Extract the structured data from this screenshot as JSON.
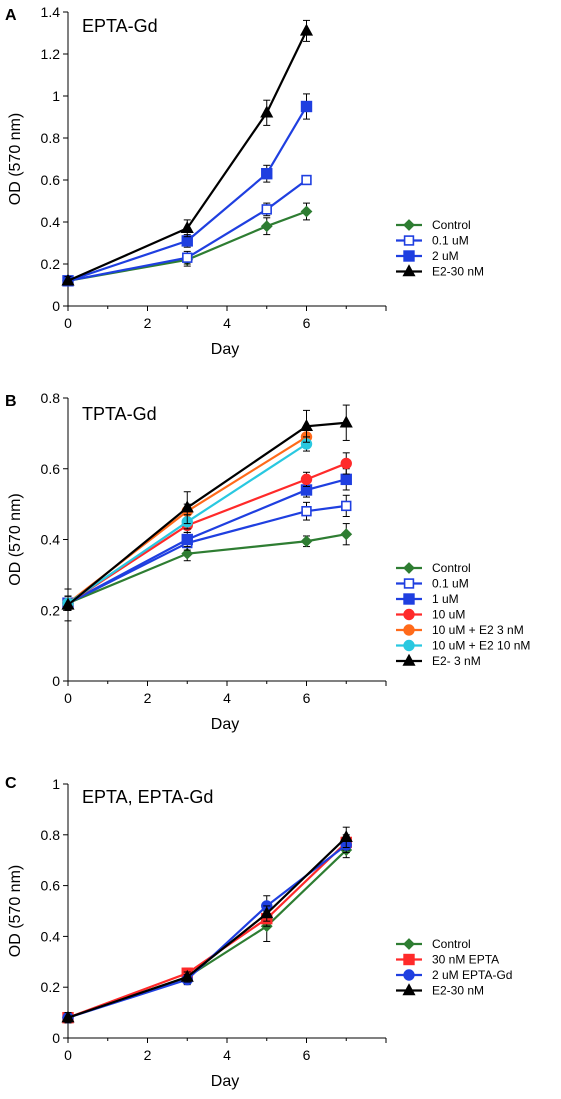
{
  "figure": {
    "colors": {
      "control": "#2e7d32",
      "blue": "#1f3fe0",
      "black": "#000000",
      "red": "#ff2a2a",
      "orange": "#ff6a1a",
      "cyan": "#29c8e0"
    },
    "panels": [
      {
        "letter": "A"
      },
      {
        "letter": "B"
      },
      {
        "letter": "C"
      }
    ]
  },
  "chart_data": [
    {
      "type": "line",
      "title": "EPTA-Gd",
      "xlabel": "Day",
      "ylabel": "OD (570 nm)",
      "xlim": [
        0,
        8
      ],
      "ylim": [
        0,
        1.4
      ],
      "xticks": [
        "0",
        "2",
        "4",
        "6"
      ],
      "yticks": [
        "0",
        "0.2",
        "0.4",
        "0.6",
        "0.8",
        "1",
        "1.2",
        "1.4"
      ],
      "legend_position": "right",
      "grid": false,
      "series": [
        {
          "name": "Control",
          "color": "#2e7d32",
          "marker": "diamond",
          "x": [
            0,
            3,
            5,
            6
          ],
          "y": [
            0.12,
            0.22,
            0.38,
            0.45
          ],
          "err": [
            0.02,
            0.03,
            0.04,
            0.04
          ]
        },
        {
          "name": "0.1 uM",
          "color": "#1f3fe0",
          "marker": "square-open",
          "x": [
            0,
            3,
            5,
            6
          ],
          "y": [
            0.12,
            0.23,
            0.46,
            0.6
          ],
          "err": [
            0.02,
            0.03,
            0.03,
            0.02
          ]
        },
        {
          "name": "2 uM",
          "color": "#1f3fe0",
          "marker": "square",
          "x": [
            0,
            3,
            5,
            6
          ],
          "y": [
            0.12,
            0.31,
            0.63,
            0.95
          ],
          "err": [
            0.02,
            0.03,
            0.04,
            0.06
          ]
        },
        {
          "name": "E2-30 nM",
          "color": "#000000",
          "marker": "triangle",
          "x": [
            0,
            3,
            5,
            6
          ],
          "y": [
            0.12,
            0.37,
            0.92,
            1.31
          ],
          "err": [
            0.02,
            0.04,
            0.06,
            0.05
          ]
        }
      ]
    },
    {
      "type": "line",
      "title": "TPTA-Gd",
      "xlabel": "Day",
      "ylabel": "OD (570 nm)",
      "xlim": [
        0,
        8
      ],
      "ylim": [
        0,
        0.8
      ],
      "xticks": [
        "0",
        "2",
        "4",
        "6"
      ],
      "yticks": [
        "0",
        "0.2",
        "0.4",
        "0.6",
        "0.8"
      ],
      "legend_position": "right",
      "grid": false,
      "series": [
        {
          "name": "Control",
          "color": "#2e7d32",
          "marker": "diamond",
          "x": [
            0,
            3,
            6,
            7
          ],
          "y": [
            0.22,
            0.36,
            0.395,
            0.415
          ],
          "err": [
            0.02,
            0.02,
            0.015,
            0.03
          ]
        },
        {
          "name": "0.1 uM",
          "color": "#1f3fe0",
          "marker": "square-open",
          "x": [
            0,
            3,
            6,
            7
          ],
          "y": [
            0.22,
            0.39,
            0.48,
            0.495
          ],
          "err": [
            0.02,
            0.02,
            0.025,
            0.03
          ]
        },
        {
          "name": "1 uM",
          "color": "#1f3fe0",
          "marker": "square",
          "x": [
            0,
            3,
            6,
            7
          ],
          "y": [
            0.22,
            0.4,
            0.54,
            0.57
          ],
          "err": [
            0.02,
            0.02,
            0.02,
            0.03
          ]
        },
        {
          "name": "10 uM",
          "color": "#ff2a2a",
          "marker": "circle",
          "x": [
            0,
            3,
            6,
            7
          ],
          "y": [
            0.22,
            0.44,
            0.57,
            0.615
          ],
          "err": [
            0.02,
            0.02,
            0.02,
            0.03
          ]
        },
        {
          "name": "10 uM + E2 3 nM",
          "color": "#ff6a1a",
          "marker": "circle",
          "x": [
            0,
            3,
            6
          ],
          "y": [
            0.22,
            0.48,
            0.69
          ],
          "err": [
            0.02,
            0.02,
            0.02
          ]
        },
        {
          "name": "10 uM + E2 10 nM",
          "color": "#29c8e0",
          "marker": "circle",
          "x": [
            0,
            3,
            6
          ],
          "y": [
            0.22,
            0.45,
            0.67
          ],
          "err": [
            0.02,
            0.02,
            0.02
          ]
        },
        {
          "name": "E2- 3 nM",
          "color": "#000000",
          "marker": "triangle",
          "x": [
            0,
            3,
            6,
            7
          ],
          "y": [
            0.215,
            0.49,
            0.72,
            0.73
          ],
          "err": [
            0.045,
            0.045,
            0.045,
            0.05
          ]
        }
      ]
    },
    {
      "type": "line",
      "title": "EPTA, EPTA-Gd",
      "xlabel": "Day",
      "ylabel": "OD (570 nm)",
      "xlim": [
        0,
        8
      ],
      "ylim": [
        0,
        1
      ],
      "xticks": [
        "0",
        "2",
        "4",
        "6"
      ],
      "yticks": [
        "0",
        "0.2",
        "0.4",
        "0.6",
        "0.8",
        "1"
      ],
      "legend_position": "right",
      "grid": false,
      "series": [
        {
          "name": "Control",
          "color": "#2e7d32",
          "marker": "diamond",
          "x": [
            0,
            3,
            5,
            7
          ],
          "y": [
            0.08,
            0.24,
            0.44,
            0.74
          ],
          "err": [
            0.02,
            0.02,
            0.06,
            0.03
          ]
        },
        {
          "name": "30 nM EPTA",
          "color": "#ff2a2a",
          "marker": "square",
          "x": [
            0,
            3,
            5,
            7
          ],
          "y": [
            0.08,
            0.255,
            0.47,
            0.77
          ],
          "err": [
            0.02,
            0.02,
            0.03,
            0.03
          ]
        },
        {
          "name": "2 uM EPTA-Gd",
          "color": "#1f3fe0",
          "marker": "circle",
          "x": [
            0,
            3,
            5,
            7
          ],
          "y": [
            0.08,
            0.23,
            0.52,
            0.76
          ],
          "err": [
            0.02,
            0.02,
            0.04,
            0.03
          ]
        },
        {
          "name": "E2-30 nM",
          "color": "#000000",
          "marker": "triangle",
          "x": [
            0,
            3,
            5,
            7
          ],
          "y": [
            0.08,
            0.24,
            0.49,
            0.79
          ],
          "err": [
            0.02,
            0.02,
            0.03,
            0.04
          ]
        }
      ]
    }
  ]
}
